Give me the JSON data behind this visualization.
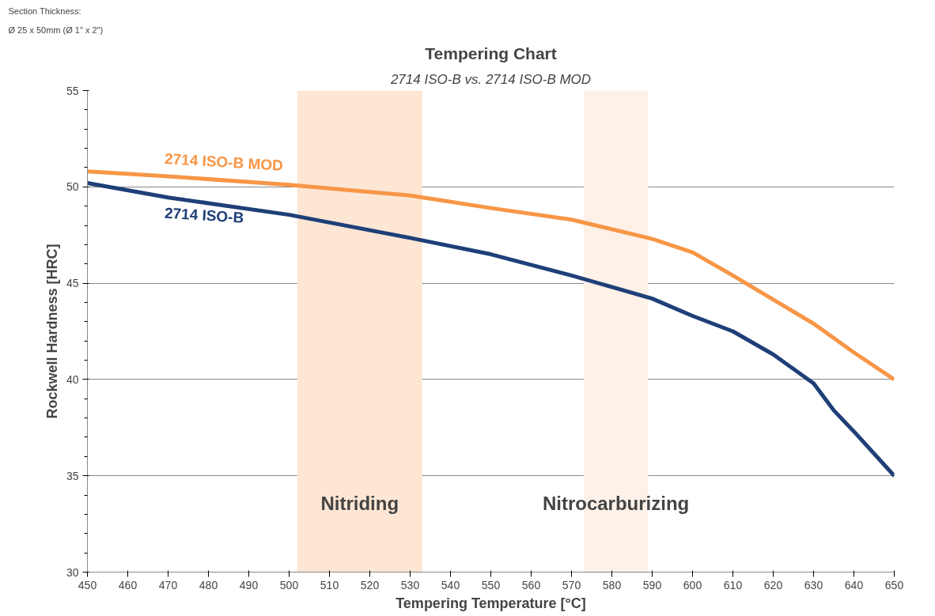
{
  "chart_data": {
    "type": "line",
    "title": "Tempering Chart",
    "subtitle": "2714 ISO-B vs. 2714 ISO-B MOD",
    "xlabel": "Tempering Temperature [°C]",
    "ylabel": "Rockwell Hardness [HRC]",
    "x": [
      450,
      470,
      500,
      530,
      550,
      570,
      590,
      600,
      610,
      620,
      630,
      635,
      640,
      650
    ],
    "series": [
      {
        "name": "2714 ISO-B MOD",
        "color": "#f79646",
        "values": [
          50.8,
          50.55,
          50.1,
          49.55,
          48.9,
          48.3,
          47.3,
          46.6,
          45.4,
          44.15,
          42.9,
          42.15,
          41.4,
          40.0
        ]
      },
      {
        "name": "2714 ISO-B",
        "color": "#1f3f78",
        "values": [
          50.2,
          49.45,
          48.55,
          47.35,
          46.5,
          45.4,
          44.2,
          43.3,
          42.5,
          41.3,
          39.8,
          38.4,
          37.3,
          35.0
        ]
      }
    ],
    "xlim": [
      450,
      650
    ],
    "xticks": [
      450,
      460,
      470,
      480,
      490,
      500,
      510,
      520,
      530,
      540,
      550,
      560,
      570,
      580,
      590,
      600,
      610,
      620,
      630,
      640,
      650
    ],
    "ylim": [
      30,
      55
    ],
    "yticks": [
      30,
      35,
      40,
      45,
      50,
      55
    ],
    "bands": [
      {
        "axis": "x",
        "from": 502,
        "to": 533,
        "label": "Nitriding",
        "color": "#fde6d4"
      },
      {
        "axis": "x",
        "from": 573,
        "to": 589,
        "label": "Nitrocarburizing",
        "color": "#fdf1e8"
      }
    ],
    "annotations": [
      "Section Thickness:",
      "Ø 25 x 50mm (Ø 1\" x 2\")"
    ],
    "grid": "y",
    "line_style": "solid",
    "marker": "none"
  }
}
